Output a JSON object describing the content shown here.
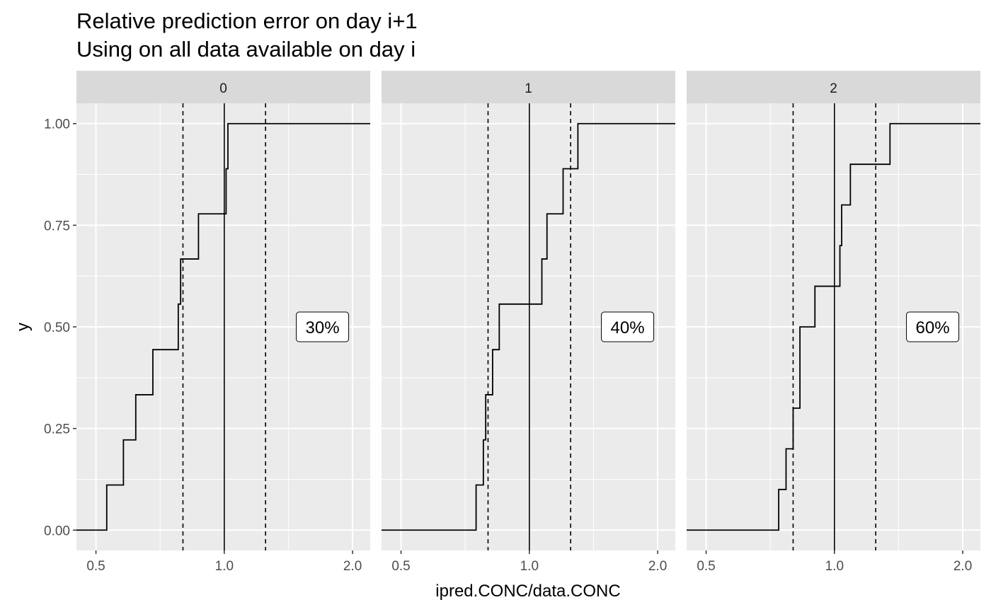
{
  "chart_data": {
    "type": "line",
    "subtype": "step-ecdf-facets",
    "title": "Relative prediction error on day i+1",
    "subtitle": "Using on all data available on day i",
    "xlabel": "ipred.CONC/data.CONC",
    "ylabel": "y",
    "x_scale": "log",
    "xlim": [
      0.45,
      2.2
    ],
    "ylim": [
      -0.05,
      1.05
    ],
    "x_ticks": [
      0.5,
      1.0,
      2.0
    ],
    "x_tick_labels": [
      "0.5",
      "1.0",
      "2.0"
    ],
    "y_ticks": [
      0,
      0.25,
      0.5,
      0.75,
      1.0
    ],
    "y_tick_labels": [
      "0.00",
      "0.25",
      "0.50",
      "0.75",
      "1.00"
    ],
    "x_minor_gridlines": [
      0.707,
      1.414
    ],
    "y_minor_gridlines": [
      0.125,
      0.375,
      0.625,
      0.875
    ],
    "grid": true,
    "panel_background": "#ebebeb",
    "strip_background": "#d9d9d9",
    "grid_color": "#ffffff",
    "line_color": "#000000",
    "reference_lines": {
      "solid": [
        1.0
      ],
      "dashed": [
        0.8,
        1.25
      ]
    },
    "facets": [
      {
        "strip": "0",
        "label": "30%",
        "label_position": [
          1.7,
          0.5
        ],
        "steps": [
          {
            "x": 0.53,
            "y": 0.111
          },
          {
            "x": 0.58,
            "y": 0.222
          },
          {
            "x": 0.62,
            "y": 0.333
          },
          {
            "x": 0.68,
            "y": 0.444
          },
          {
            "x": 0.78,
            "y": 0.556
          },
          {
            "x": 0.79,
            "y": 0.667
          },
          {
            "x": 0.87,
            "y": 0.778
          },
          {
            "x": 1.01,
            "y": 0.889
          },
          {
            "x": 1.02,
            "y": 1.0
          }
        ]
      },
      {
        "strip": "1",
        "label": "40%",
        "label_position": [
          1.7,
          0.5
        ],
        "steps": [
          {
            "x": 0.75,
            "y": 0.111
          },
          {
            "x": 0.78,
            "y": 0.222
          },
          {
            "x": 0.79,
            "y": 0.333
          },
          {
            "x": 0.82,
            "y": 0.444
          },
          {
            "x": 0.85,
            "y": 0.556
          },
          {
            "x": 1.07,
            "y": 0.667
          },
          {
            "x": 1.1,
            "y": 0.778
          },
          {
            "x": 1.2,
            "y": 0.889
          },
          {
            "x": 1.3,
            "y": 1.0
          }
        ]
      },
      {
        "strip": "2",
        "label": "60%",
        "label_position": [
          1.7,
          0.5
        ],
        "steps": [
          {
            "x": 0.74,
            "y": 0.1
          },
          {
            "x": 0.77,
            "y": 0.2
          },
          {
            "x": 0.8,
            "y": 0.3
          },
          {
            "x": 0.83,
            "y": 0.5
          },
          {
            "x": 0.9,
            "y": 0.6
          },
          {
            "x": 1.03,
            "y": 0.7
          },
          {
            "x": 1.04,
            "y": 0.8
          },
          {
            "x": 1.09,
            "y": 0.9
          },
          {
            "x": 1.35,
            "y": 1.0
          }
        ]
      }
    ]
  }
}
